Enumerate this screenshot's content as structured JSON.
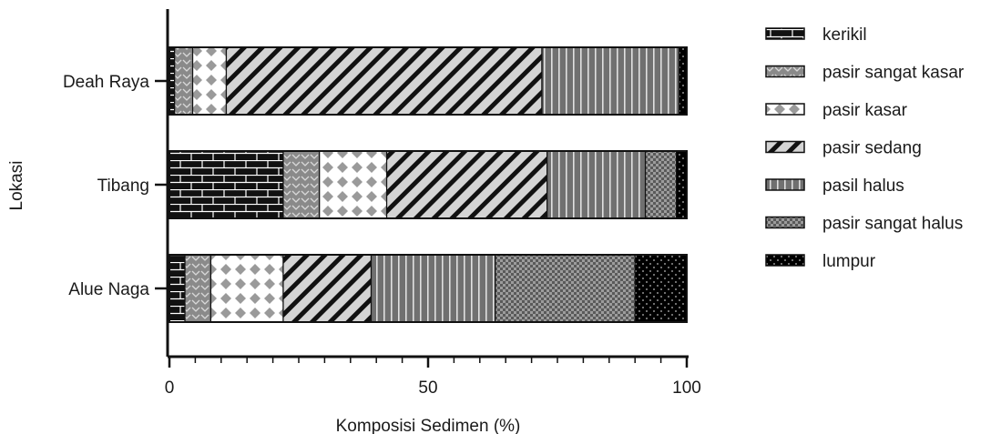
{
  "chart_data": {
    "type": "bar",
    "orientation": "horizontal",
    "stacked": true,
    "title": "",
    "xlabel": "Komposisi Sedimen (%)",
    "ylabel": "Lokasi",
    "xlim": [
      0,
      100
    ],
    "xticks": [
      "0",
      "50",
      "100"
    ],
    "xtick_values": [
      0,
      50,
      100
    ],
    "categories": [
      "Deah Raya",
      "Tibang",
      "Alue Naga"
    ],
    "series": [
      {
        "name": "kerikil",
        "pattern": "bricks",
        "values": [
          1,
          22,
          3
        ]
      },
      {
        "name": "pasir sangat kasar",
        "pattern": "chevrons",
        "values": [
          3.5,
          7,
          5
        ]
      },
      {
        "name": "pasir kasar",
        "pattern": "diamonds",
        "values": [
          6.5,
          13,
          14
        ]
      },
      {
        "name": "pasir sedang",
        "pattern": "diagonal",
        "values": [
          61,
          31,
          17
        ]
      },
      {
        "name": "pasil halus",
        "pattern": "vertical",
        "values": [
          26.5,
          19,
          24
        ]
      },
      {
        "name": "pasir sangat halus",
        "pattern": "checker",
        "values": [
          0,
          6,
          27
        ]
      },
      {
        "name": "lumpur",
        "pattern": "dots",
        "values": [
          1.5,
          2,
          10
        ]
      }
    ],
    "legend": "right",
    "grid": false
  }
}
